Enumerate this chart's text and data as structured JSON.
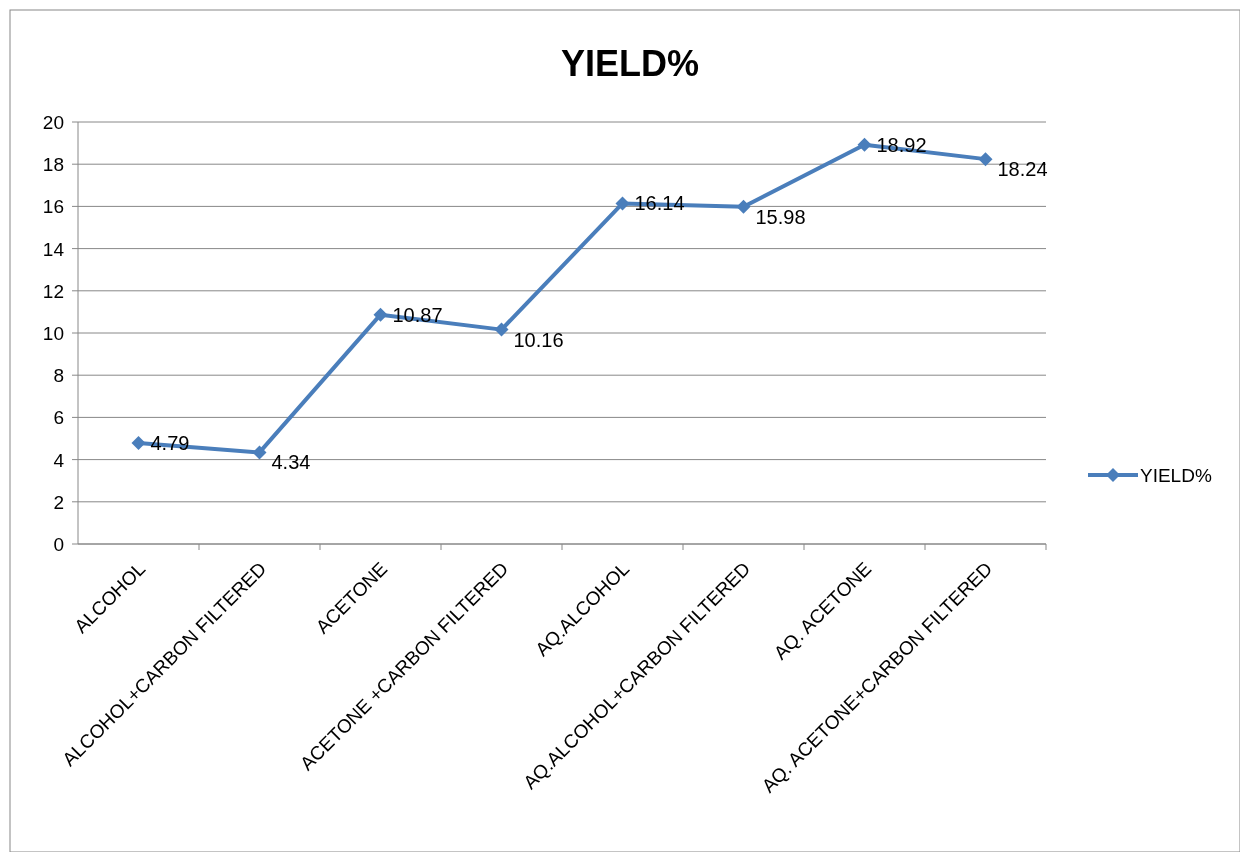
{
  "chart_data": {
    "type": "line",
    "title": "YIELD%",
    "categories": [
      "ALCOHOL",
      "ALCOHOL+CARBON FILTERED",
      "ACETONE",
      "ACETONE +CARBON FILTERED",
      "AQ.ALCOHOL",
      "AQ.ALCOHOL+CARBON FILTERED",
      "AQ. ACETONE",
      "AQ. ACETONE+CARBON FILTERED"
    ],
    "series": [
      {
        "name": "YIELD%",
        "color": "#4a7ebb",
        "values": [
          4.79,
          4.34,
          10.87,
          10.16,
          16.14,
          15.98,
          18.92,
          18.24
        ]
      }
    ],
    "ylim": [
      0,
      20
    ],
    "yticks": [
      0,
      2,
      4,
      6,
      8,
      10,
      12,
      14,
      16,
      18,
      20
    ],
    "grid": "y",
    "legend": "right",
    "marker": "diamond",
    "line_style": "solid",
    "data_labels": true
  }
}
